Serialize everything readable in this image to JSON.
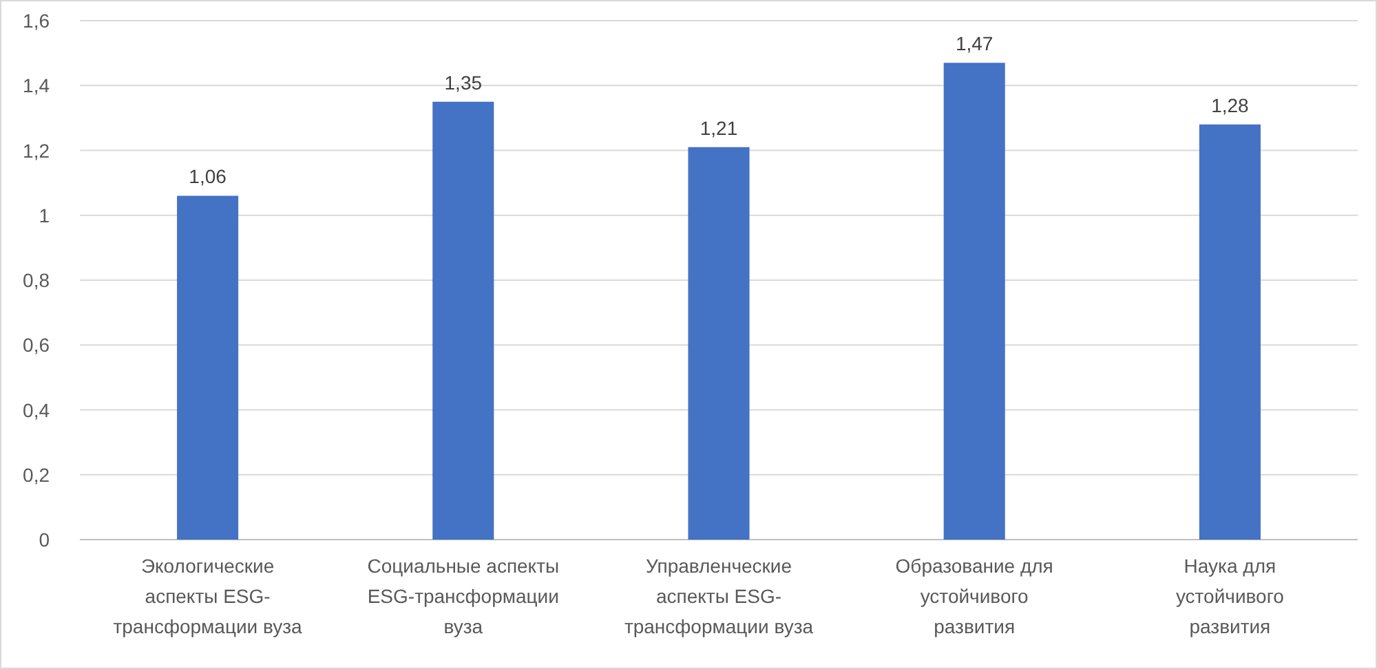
{
  "chart_data": {
    "type": "bar",
    "categories": [
      "Экологические аспекты ESG-трансформации вуза",
      "Социальные аспекты ESG-трансформации вуза",
      "Управленческие аспекты ESG-трансформации вуза",
      "Образование для устойчивого развития",
      "Наука для устойчивого развития"
    ],
    "values": [
      1.06,
      1.35,
      1.21,
      1.47,
      1.28
    ],
    "value_labels": [
      "1,06",
      "1,35",
      "1,21",
      "1,47",
      "1,28"
    ],
    "color": "#4472c4",
    "ylim": [
      0,
      1.6
    ],
    "yticks": [
      {
        "value": 0,
        "label": "0"
      },
      {
        "value": 0.2,
        "label": "0,2"
      },
      {
        "value": 0.4,
        "label": "0,4"
      },
      {
        "value": 0.6,
        "label": "0,6"
      },
      {
        "value": 0.8,
        "label": "0,8"
      },
      {
        "value": 1,
        "label": "1"
      },
      {
        "value": 1.2,
        "label": "1,2"
      },
      {
        "value": 1.4,
        "label": "1,4"
      },
      {
        "value": 1.6,
        "label": "1,6"
      }
    ],
    "grid": true
  }
}
